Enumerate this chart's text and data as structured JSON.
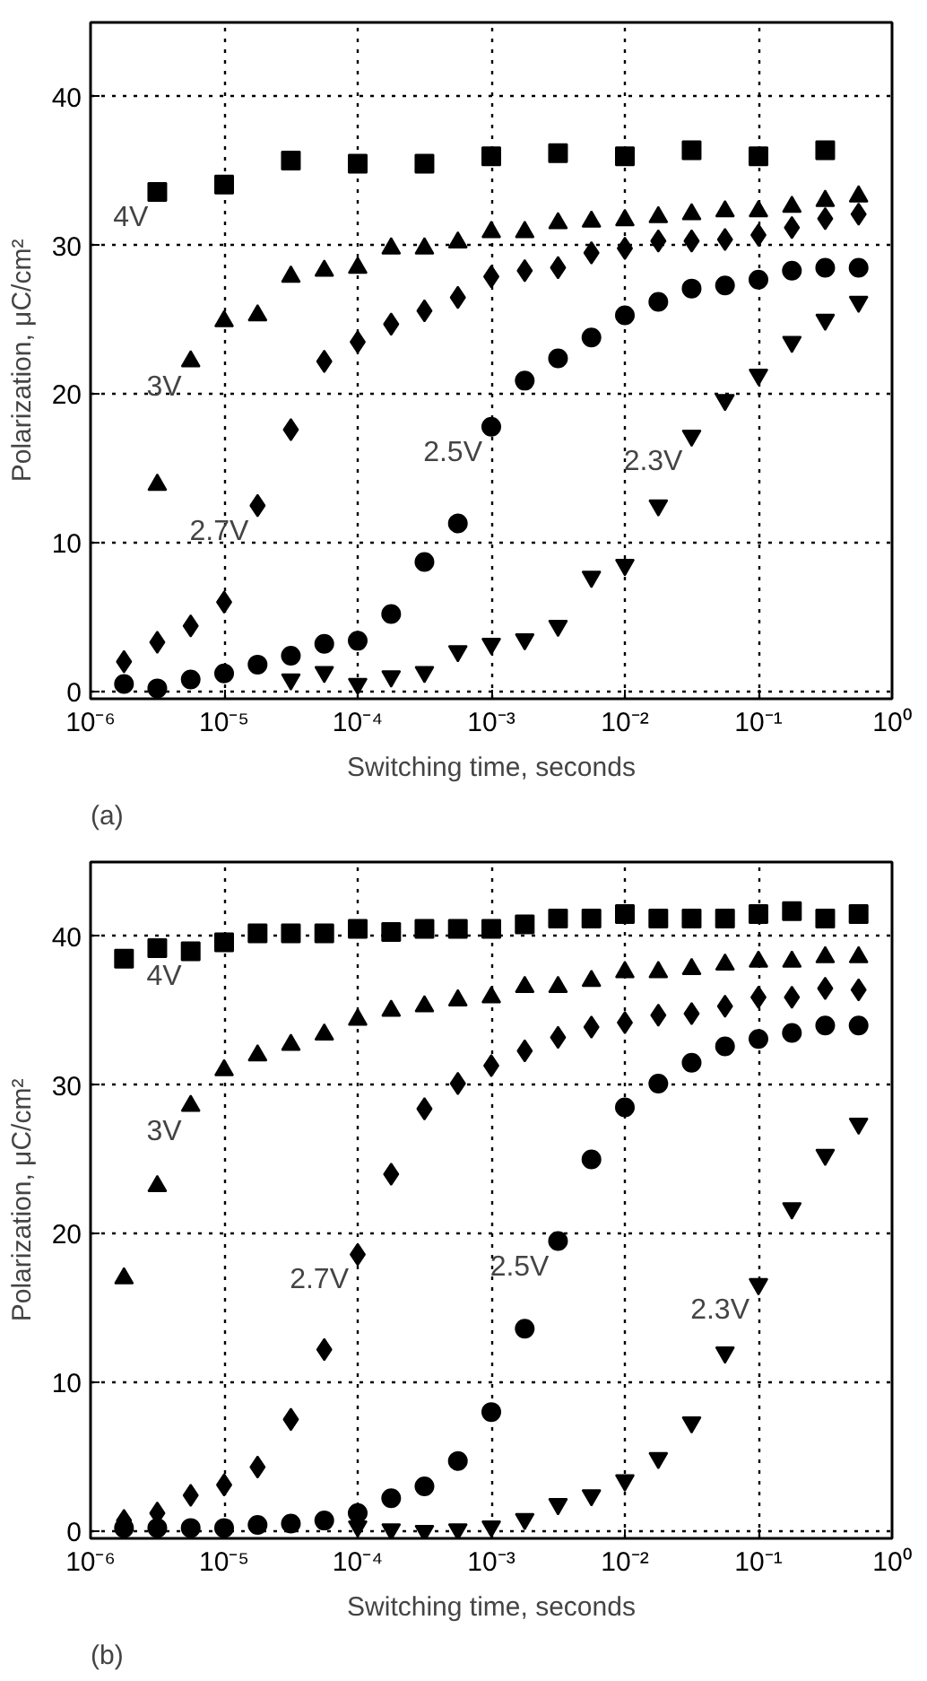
{
  "chart_data": [
    {
      "type": "scatter",
      "xlabel": "Switching time, seconds",
      "ylabel": "Polarization, μC/cm²",
      "log": "x",
      "grid": true,
      "xlim": [
        1e-06,
        1
      ],
      "ylim": [
        -0.5,
        45
      ],
      "xticks": [
        {
          "value": 1e-06,
          "label": "10⁻⁶"
        },
        {
          "value": 1e-05,
          "label": "10⁻⁵"
        },
        {
          "value": 0.0001,
          "label": "10⁻⁴"
        },
        {
          "value": 0.001,
          "label": "10⁻³"
        },
        {
          "value": 0.01,
          "label": "10⁻²"
        },
        {
          "value": 0.1,
          "label": "10⁻¹"
        },
        {
          "value": 1,
          "label": "10⁰"
        }
      ],
      "yticks": [
        0,
        10,
        20,
        30,
        40
      ],
      "series": [
        {
          "color": "#000000",
          "marker": "square",
          "x": [
            3.16e-06,
            1e-05,
            3.16e-05,
            0.0001,
            0.000316,
            0.001,
            0.00316,
            0.01,
            0.0316,
            0.1,
            0.316
          ],
          "values": [
            33.6,
            34.1,
            35.7,
            35.5,
            35.5,
            36.0,
            36.2,
            36.0,
            36.4,
            36.0,
            36.4
          ]
        },
        {
          "color": "#000000",
          "marker": "triangle",
          "x": [
            3.16e-06,
            5.62e-06,
            1e-05,
            1.78e-05,
            3.16e-05,
            5.62e-05,
            0.0001,
            0.000178,
            0.000316,
            0.000562,
            0.001,
            0.00178,
            0.00316,
            0.00562,
            0.01,
            0.0178,
            0.0316,
            0.0562,
            0.1,
            0.178,
            0.316,
            0.562
          ],
          "values": [
            13.9,
            22.2,
            24.9,
            25.3,
            27.9,
            28.3,
            28.5,
            29.8,
            29.8,
            30.2,
            30.9,
            30.9,
            31.5,
            31.6,
            31.7,
            31.9,
            32.1,
            32.3,
            32.3,
            32.6,
            33.0,
            33.3
          ]
        },
        {
          "color": "#000000",
          "marker": "diamond",
          "x": [
            1.78e-06,
            3.16e-06,
            5.62e-06,
            1e-05,
            1.78e-05,
            3.16e-05,
            5.62e-05,
            0.0001,
            0.000178,
            0.000316,
            0.000562,
            0.001,
            0.00178,
            0.00316,
            0.00562,
            0.01,
            0.0178,
            0.0316,
            0.0562,
            0.1,
            0.178,
            0.316,
            0.562
          ],
          "values": [
            2.0,
            3.3,
            4.4,
            6.0,
            12.5,
            17.6,
            22.2,
            23.5,
            24.7,
            25.6,
            26.5,
            27.9,
            28.3,
            28.5,
            29.5,
            29.8,
            30.3,
            30.3,
            30.4,
            30.7,
            31.2,
            31.8,
            32.1
          ]
        },
        {
          "color": "#000000",
          "marker": "circle",
          "x": [
            1.78e-06,
            3.16e-06,
            5.62e-06,
            1e-05,
            1.78e-05,
            3.16e-05,
            5.62e-05,
            0.0001,
            0.000178,
            0.000316,
            0.000562,
            0.001,
            0.00178,
            0.00316,
            0.00562,
            0.01,
            0.0178,
            0.0316,
            0.0562,
            0.1,
            0.178,
            0.316,
            0.562
          ],
          "values": [
            0.5,
            0.2,
            0.8,
            1.2,
            1.8,
            2.4,
            3.2,
            3.4,
            5.2,
            8.7,
            11.3,
            17.8,
            20.9,
            22.4,
            23.8,
            25.3,
            26.2,
            27.1,
            27.3,
            27.7,
            28.3,
            28.5,
            28.5
          ]
        },
        {
          "color": "#000000",
          "marker": "triangle_down",
          "x": [
            3.16e-05,
            5.62e-05,
            0.0001,
            0.000178,
            0.000316,
            0.000562,
            0.001,
            0.00178,
            0.00316,
            0.00562,
            0.01,
            0.0178,
            0.0316,
            0.0562,
            0.1,
            0.178,
            0.316,
            0.562
          ],
          "values": [
            0.8,
            1.3,
            0.5,
            1.0,
            1.3,
            2.7,
            3.2,
            3.5,
            4.4,
            7.7,
            8.5,
            12.5,
            17.2,
            19.6,
            21.3,
            23.5,
            25.0,
            26.2
          ]
        }
      ],
      "annotations": [
        {
          "text": "4V",
          "x": 3.16e-06,
          "y": 33.6
        },
        {
          "text": "3V",
          "x": 5.62e-06,
          "y": 22.2
        },
        {
          "text": "2.7V",
          "x": 1.78e-05,
          "y": 12.5
        },
        {
          "text": "2.5V",
          "x": 0.001,
          "y": 17.8
        },
        {
          "text": "2.3V",
          "x": 0.0316,
          "y": 17.2
        },
        "(a)"
      ]
    },
    {
      "type": "scatter",
      "xlabel": "Switching time, seconds",
      "ylabel": "Polarization, μC/cm²",
      "log": "x",
      "grid": true,
      "xlim": [
        1e-06,
        1
      ],
      "ylim": [
        -0.5,
        45
      ],
      "xticks": [
        {
          "value": 1e-06,
          "label": "10⁻⁶"
        },
        {
          "value": 1e-05,
          "label": "10⁻⁵"
        },
        {
          "value": 0.0001,
          "label": "10⁻⁴"
        },
        {
          "value": 0.001,
          "label": "10⁻³"
        },
        {
          "value": 0.01,
          "label": "10⁻²"
        },
        {
          "value": 0.1,
          "label": "10⁻¹"
        },
        {
          "value": 1,
          "label": "10⁰"
        }
      ],
      "yticks": [
        0,
        10,
        20,
        30,
        40
      ],
      "series": [
        {
          "color": "#000000",
          "marker": "square",
          "x": [
            1.78e-06,
            3.16e-06,
            5.62e-06,
            1e-05,
            1.78e-05,
            3.16e-05,
            5.62e-05,
            0.0001,
            0.000178,
            0.000316,
            0.000562,
            0.001,
            0.00178,
            0.00316,
            0.00562,
            0.01,
            0.0178,
            0.0316,
            0.0562,
            0.1,
            0.178,
            0.316,
            0.562
          ],
          "values": [
            38.5,
            39.2,
            39.0,
            39.6,
            40.2,
            40.2,
            40.2,
            40.5,
            40.3,
            40.5,
            40.5,
            40.5,
            40.8,
            41.2,
            41.2,
            41.5,
            41.2,
            41.2,
            41.2,
            41.5,
            41.7,
            41.2,
            41.5
          ]
        },
        {
          "color": "#000000",
          "marker": "triangle",
          "x": [
            1.78e-06,
            3.16e-06,
            5.62e-06,
            1e-05,
            1.78e-05,
            3.16e-05,
            5.62e-05,
            0.0001,
            0.000178,
            0.000316,
            0.000562,
            0.001,
            0.00178,
            0.00316,
            0.00562,
            0.01,
            0.0178,
            0.0316,
            0.0562,
            0.1,
            0.178,
            0.316,
            0.562
          ],
          "values": [
            17.0,
            23.2,
            28.6,
            31.0,
            32.0,
            32.7,
            33.4,
            34.4,
            35.0,
            35.3,
            35.7,
            35.9,
            36.6,
            36.6,
            37.0,
            37.6,
            37.6,
            37.8,
            38.1,
            38.3,
            38.3,
            38.6,
            38.6
          ]
        },
        {
          "color": "#000000",
          "marker": "diamond",
          "x": [
            1.78e-06,
            3.16e-06,
            5.62e-06,
            1e-05,
            1.78e-05,
            3.16e-05,
            5.62e-05,
            0.0001,
            0.000178,
            0.000316,
            0.000562,
            0.001,
            0.00178,
            0.00316,
            0.00562,
            0.01,
            0.0178,
            0.0316,
            0.0562,
            0.1,
            0.178,
            0.316,
            0.562
          ],
          "values": [
            0.7,
            1.2,
            2.4,
            3.1,
            4.3,
            7.5,
            12.2,
            18.6,
            24.0,
            28.4,
            30.1,
            31.3,
            32.3,
            33.2,
            33.9,
            34.2,
            34.7,
            34.8,
            35.3,
            35.9,
            35.9,
            36.5,
            36.4
          ]
        },
        {
          "color": "#000000",
          "marker": "circle",
          "x": [
            1.78e-06,
            3.16e-06,
            5.62e-06,
            1e-05,
            1.78e-05,
            3.16e-05,
            5.62e-05,
            0.0001,
            0.000178,
            0.000316,
            0.000562,
            0.001,
            0.00178,
            0.00316,
            0.00562,
            0.01,
            0.0178,
            0.0316,
            0.0562,
            0.1,
            0.178,
            0.316,
            0.562
          ],
          "values": [
            0.2,
            0.2,
            0.2,
            0.2,
            0.4,
            0.5,
            0.7,
            1.2,
            2.2,
            3.0,
            4.7,
            8.0,
            13.6,
            19.5,
            25.0,
            28.5,
            30.1,
            31.5,
            32.6,
            33.1,
            33.5,
            34.0,
            34.0
          ]
        },
        {
          "color": "#000000",
          "marker": "triangle_down",
          "x": [
            0.0001,
            0.000178,
            0.000316,
            0.000562,
            0.001,
            0.00178,
            0.00316,
            0.00562,
            0.01,
            0.0178,
            0.0316,
            0.0562,
            0.1,
            0.178,
            0.316,
            0.562
          ],
          "values": [
            0.3,
            0.1,
            0.0,
            0.1,
            0.3,
            0.8,
            1.8,
            2.4,
            3.4,
            4.9,
            7.3,
            12.0,
            16.6,
            21.7,
            25.3,
            27.4
          ]
        }
      ],
      "annotations": [
        {
          "text": "4V",
          "x": 5.62e-06,
          "y": 39.0
        },
        {
          "text": "3V",
          "x": 5.62e-06,
          "y": 28.6
        },
        {
          "text": "2.7V",
          "x": 0.0001,
          "y": 18.6
        },
        {
          "text": "2.5V",
          "x": 0.00316,
          "y": 19.5
        },
        {
          "text": "2.3V",
          "x": 0.1,
          "y": 16.6
        },
        "(b)"
      ]
    }
  ]
}
